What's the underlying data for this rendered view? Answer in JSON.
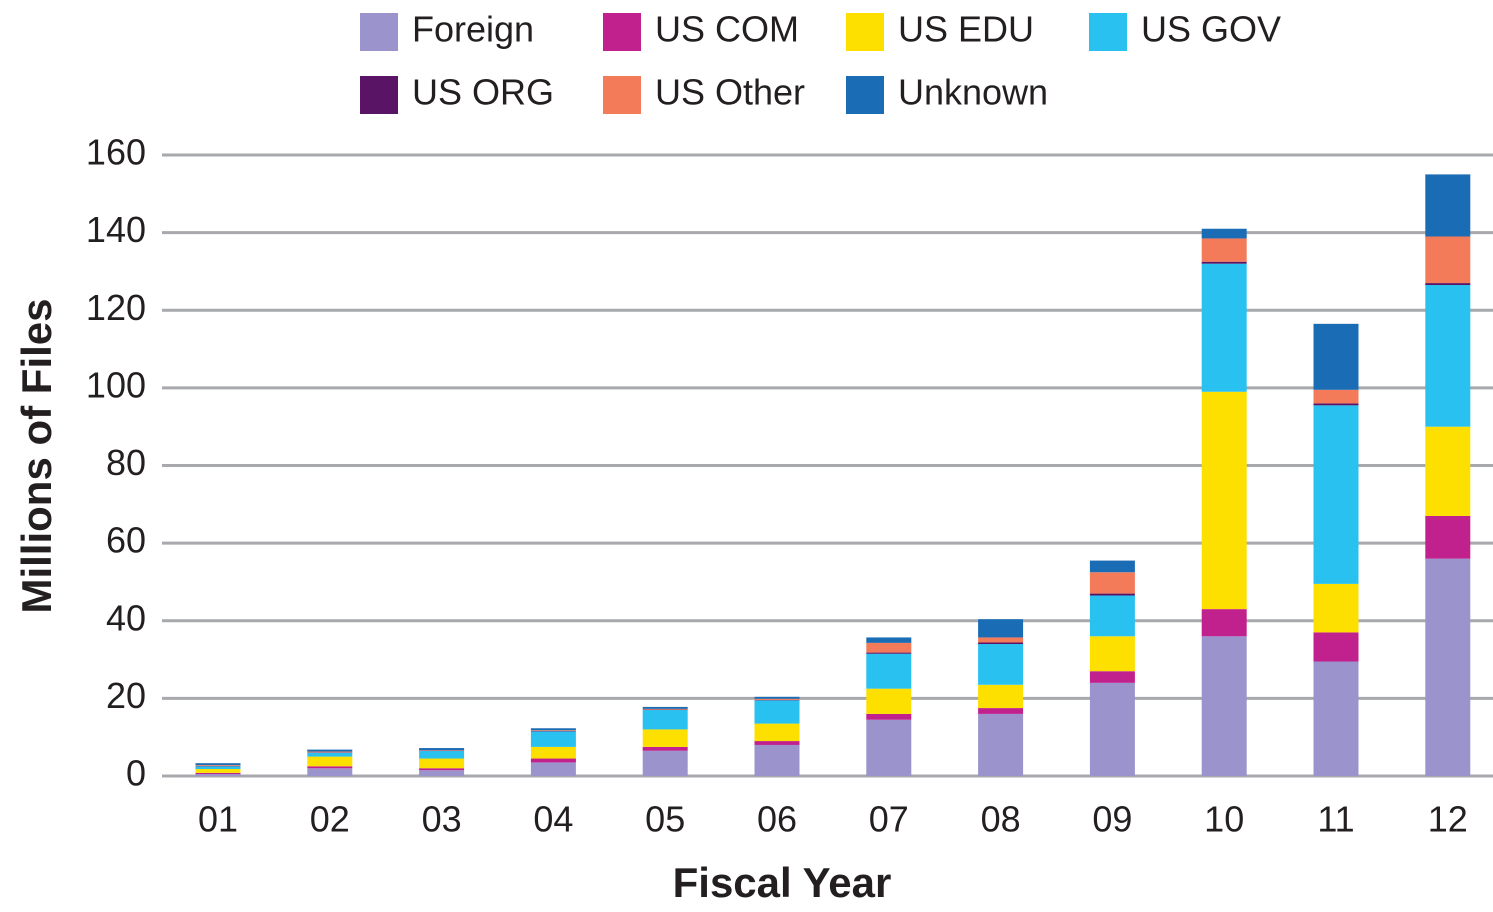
{
  "chart_data": {
    "type": "bar",
    "stacked": true,
    "x_label": "Fiscal Year",
    "y_label": "Millions of Files",
    "categories": [
      "01",
      "02",
      "03",
      "04",
      "05",
      "06",
      "07",
      "08",
      "09",
      "10",
      "11",
      "12"
    ],
    "series": [
      {
        "name": "Foreign",
        "color": "#9b93cc",
        "values": [
          0.5,
          2,
          1.5,
          3.5,
          6.5,
          8,
          14.5,
          16,
          24,
          36,
          29.5,
          56
        ]
      },
      {
        "name": "US COM",
        "color": "#c0218c",
        "values": [
          0.3,
          0.5,
          0.5,
          1,
          1,
          1,
          1.5,
          1.5,
          3,
          7,
          7.5,
          11
        ]
      },
      {
        "name": "US EDU",
        "color": "#fde000",
        "values": [
          1,
          2.5,
          2.5,
          3,
          4.5,
          4.5,
          6.5,
          6,
          9,
          56,
          12.5,
          23
        ]
      },
      {
        "name": "US GOV",
        "color": "#29c1f0",
        "values": [
          0.7,
          1,
          2,
          4,
          5,
          6,
          9,
          10.5,
          10.5,
          33,
          46,
          36.5
        ]
      },
      {
        "name": "US ORG",
        "color": "#5a1466",
        "values": [
          0.1,
          0.1,
          0.1,
          0.1,
          0.1,
          0.1,
          0.3,
          0.4,
          0.5,
          0.5,
          0.5,
          0.5
        ]
      },
      {
        "name": "US Other",
        "color": "#f47b5a",
        "values": [
          0.2,
          0.2,
          0.1,
          0.2,
          0.2,
          0.3,
          2.5,
          1.3,
          5.5,
          6,
          3.5,
          12
        ]
      },
      {
        "name": "Unknown",
        "color": "#1a6db5",
        "values": [
          0.5,
          0.5,
          0.5,
          0.5,
          0.5,
          0.5,
          1.4,
          4.7,
          3,
          2.5,
          17,
          16
        ]
      }
    ],
    "ylim": [
      0,
      160
    ],
    "yticks": [
      0,
      20,
      40,
      60,
      80,
      100,
      120,
      140,
      160
    ],
    "grid": true
  }
}
